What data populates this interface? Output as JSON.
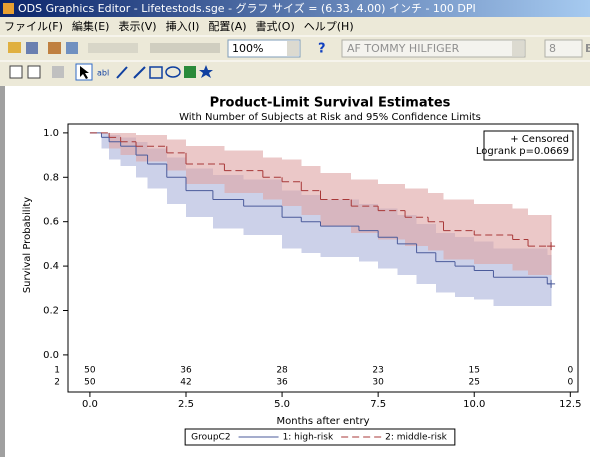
{
  "window": {
    "title": "ODS Graphics Editor - Lifetestods.sge - グラフ サイズ = (6.33, 4.00) インチ - 100 DPI",
    "menu": [
      "ファイル(F)",
      "編集(E)",
      "表示(V)",
      "挿入(I)",
      "配置(A)",
      "書式(O)",
      "ヘルプ(H)"
    ],
    "zoom": "100%",
    "font_name": "AF TOMMY HILFIGER",
    "font_size": "8",
    "bold_button": "B",
    "text_tool": "abl"
  },
  "chart_data": {
    "type": "step",
    "title": "Product-Limit Survival Estimates",
    "subtitle": "With Number of Subjects at Risk and 95% Confidence Limits",
    "xlabel": "Months after entry",
    "ylabel": "Survival Probability",
    "xlim": [
      -0.57,
      12.7
    ],
    "ylim": [
      -0.05,
      1.04
    ],
    "xticks": [
      {
        "value": 0,
        "label": "0.0"
      },
      2.5,
      {
        "value": 5,
        "label": "5.0"
      },
      7.5,
      {
        "value": 10,
        "label": "10.0"
      },
      12.5
    ],
    "yticks": [
      {
        "value": 0,
        "label": "0.0"
      },
      0.2,
      0.4,
      0.6,
      0.8,
      {
        "value": 1,
        "label": "1.0"
      }
    ],
    "series": [
      {
        "name": "1: high-risk",
        "color": "#4b5b9b",
        "band_color": "#aab3da",
        "line_style": "solid",
        "x": [
          0,
          0.3,
          0.5,
          0.8,
          1.2,
          1.5,
          2.0,
          2.5,
          3.2,
          4.0,
          5.0,
          5.5,
          6.0,
          7.0,
          7.5,
          8.0,
          8.5,
          9.0,
          9.5,
          10.0,
          10.5,
          11.9,
          12.0
        ],
        "values": [
          1,
          0.98,
          0.96,
          0.94,
          0.9,
          0.86,
          0.8,
          0.74,
          0.7,
          0.67,
          0.62,
          0.6,
          0.58,
          0.56,
          0.53,
          0.5,
          0.46,
          0.42,
          0.4,
          0.38,
          0.35,
          0.32,
          0.32
        ],
        "lower": [
          1,
          0.93,
          0.88,
          0.85,
          0.8,
          0.75,
          0.68,
          0.62,
          0.57,
          0.54,
          0.48,
          0.46,
          0.44,
          0.42,
          0.39,
          0.36,
          0.32,
          0.28,
          0.26,
          0.25,
          0.22,
          0.22,
          0.22
        ],
        "upper": [
          1,
          1,
          0.99,
          0.98,
          0.96,
          0.93,
          0.89,
          0.84,
          0.81,
          0.79,
          0.74,
          0.72,
          0.7,
          0.68,
          0.66,
          0.63,
          0.59,
          0.55,
          0.53,
          0.51,
          0.48,
          0.45,
          0.45
        ]
      },
      {
        "name": "2: middle-risk",
        "color": "#a83838",
        "band_color": "#dea4a4",
        "line_style": "dashed",
        "x": [
          0,
          0.5,
          0.8,
          1.2,
          2.0,
          2.5,
          3.5,
          4.5,
          5.0,
          5.5,
          6.0,
          6.8,
          7.5,
          8.2,
          8.8,
          9.2,
          10.0,
          11.0,
          11.4,
          12.0
        ],
        "values": [
          1,
          0.98,
          0.96,
          0.94,
          0.91,
          0.86,
          0.83,
          0.8,
          0.78,
          0.74,
          0.7,
          0.67,
          0.65,
          0.62,
          0.6,
          0.56,
          0.54,
          0.52,
          0.49,
          0.49
        ],
        "lower": [
          1,
          0.93,
          0.9,
          0.87,
          0.83,
          0.77,
          0.73,
          0.7,
          0.67,
          0.63,
          0.58,
          0.55,
          0.52,
          0.49,
          0.47,
          0.43,
          0.41,
          0.38,
          0.36,
          0.36
        ],
        "upper": [
          1,
          1,
          1,
          0.99,
          0.97,
          0.94,
          0.92,
          0.89,
          0.88,
          0.85,
          0.82,
          0.79,
          0.77,
          0.75,
          0.73,
          0.7,
          0.68,
          0.66,
          0.63,
          0.63
        ]
      }
    ],
    "legend_title": "GroupC2",
    "inset": [
      "+ Censored",
      "Logrank p=0.0669"
    ],
    "at_risk": {
      "x": [
        0,
        2.5,
        5,
        7.5,
        10,
        12.5
      ],
      "rows": [
        {
          "label": "1",
          "values": [
            50,
            36,
            28,
            23,
            15,
            0
          ]
        },
        {
          "label": "2",
          "values": [
            50,
            42,
            36,
            30,
            25,
            0
          ]
        }
      ]
    }
  }
}
